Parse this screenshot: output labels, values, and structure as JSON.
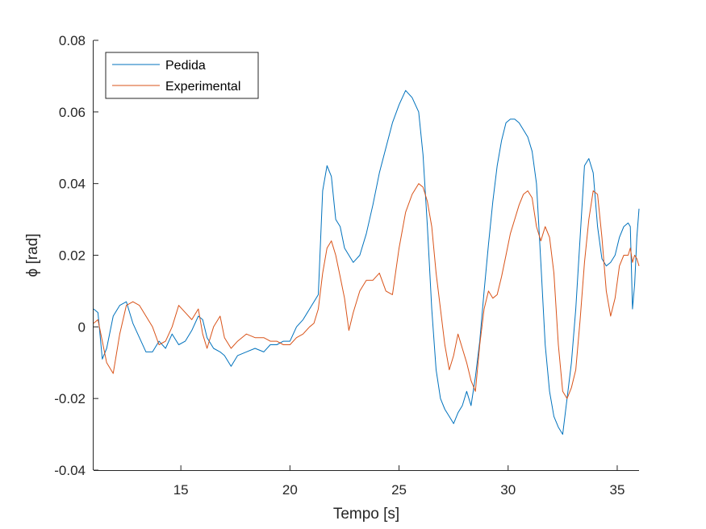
{
  "chart_data": {
    "type": "line",
    "title": "",
    "xlabel": "Tempo [s]",
    "ylabel": "ϕ [rad]",
    "xlim": [
      11,
      36
    ],
    "ylim": [
      -0.04,
      0.08
    ],
    "x_ticks": [
      15,
      20,
      25,
      30,
      35
    ],
    "x_tick_labels": [
      "15",
      "20",
      "25",
      "30",
      "35"
    ],
    "y_ticks": [
      -0.04,
      -0.02,
      0,
      0.02,
      0.04,
      0.06,
      0.08
    ],
    "y_tick_labels": [
      "-0.04",
      "-0.02",
      "0",
      "0.02",
      "0.04",
      "0.06",
      "0.08"
    ],
    "grid": false,
    "legend_position": "top-left",
    "series": [
      {
        "name": "Pedida",
        "color": "#0072BD",
        "x": [
          11,
          11.2,
          11.4,
          11.6,
          11.9,
          12.2,
          12.5,
          12.8,
          13.1,
          13.4,
          13.7,
          14.0,
          14.3,
          14.6,
          14.9,
          15.2,
          15.5,
          15.8,
          16.0,
          16.2,
          16.5,
          16.8,
          17.0,
          17.3,
          17.6,
          18.0,
          18.4,
          18.8,
          19.1,
          19.4,
          19.7,
          20.0,
          20.3,
          20.6,
          20.9,
          21.1,
          21.3,
          21.5,
          21.7,
          21.9,
          22.1,
          22.3,
          22.5,
          22.7,
          22.9,
          23.2,
          23.5,
          23.8,
          24.1,
          24.4,
          24.7,
          25.0,
          25.3,
          25.6,
          25.9,
          26.1,
          26.3,
          26.5,
          26.7,
          26.9,
          27.1,
          27.3,
          27.5,
          27.7,
          27.9,
          28.1,
          28.3,
          28.5,
          28.7,
          28.9,
          29.1,
          29.3,
          29.5,
          29.7,
          29.9,
          30.1,
          30.3,
          30.5,
          30.7,
          30.9,
          31.1,
          31.3,
          31.5,
          31.7,
          31.9,
          32.1,
          32.3,
          32.5,
          32.7,
          32.9,
          33.1,
          33.3,
          33.5,
          33.7,
          33.9,
          34.1,
          34.3,
          34.5,
          34.7,
          34.9,
          35.1,
          35.3,
          35.5,
          35.6,
          35.7,
          35.8,
          35.9,
          36.0
        ],
        "y": [
          0.005,
          0.004,
          -0.009,
          -0.006,
          0.003,
          0.006,
          0.007,
          0.001,
          -0.003,
          -0.007,
          -0.007,
          -0.004,
          -0.006,
          -0.002,
          -0.005,
          -0.004,
          -0.001,
          0.003,
          0.002,
          -0.003,
          -0.006,
          -0.007,
          -0.008,
          -0.011,
          -0.008,
          -0.007,
          -0.006,
          -0.007,
          -0.005,
          -0.005,
          -0.004,
          -0.004,
          0.0,
          0.002,
          0.005,
          0.007,
          0.009,
          0.038,
          0.045,
          0.042,
          0.03,
          0.028,
          0.022,
          0.02,
          0.018,
          0.02,
          0.026,
          0.034,
          0.043,
          0.05,
          0.057,
          0.062,
          0.066,
          0.064,
          0.06,
          0.048,
          0.028,
          0.005,
          -0.012,
          -0.02,
          -0.023,
          -0.025,
          -0.027,
          -0.024,
          -0.022,
          -0.018,
          -0.022,
          -0.014,
          -0.004,
          0.01,
          0.023,
          0.035,
          0.045,
          0.052,
          0.057,
          0.058,
          0.058,
          0.057,
          0.055,
          0.053,
          0.049,
          0.04,
          0.018,
          -0.005,
          -0.018,
          -0.025,
          -0.028,
          -0.03,
          -0.02,
          -0.01,
          0.005,
          0.025,
          0.045,
          0.047,
          0.043,
          0.028,
          0.019,
          0.017,
          0.018,
          0.02,
          0.025,
          0.028,
          0.029,
          0.028,
          0.005,
          0.012,
          0.025,
          0.033
        ]
      },
      {
        "name": "Experimental",
        "color": "#D95319",
        "x": [
          11,
          11.2,
          11.4,
          11.6,
          11.9,
          12.2,
          12.5,
          12.8,
          13.1,
          13.4,
          13.7,
          14.0,
          14.3,
          14.6,
          14.9,
          15.2,
          15.5,
          15.8,
          16.0,
          16.2,
          16.5,
          16.8,
          17.0,
          17.3,
          17.6,
          18.0,
          18.4,
          18.8,
          19.1,
          19.4,
          19.7,
          20.0,
          20.3,
          20.6,
          20.9,
          21.1,
          21.3,
          21.5,
          21.7,
          21.9,
          22.1,
          22.3,
          22.5,
          22.7,
          22.9,
          23.2,
          23.5,
          23.8,
          24.1,
          24.4,
          24.7,
          25.0,
          25.3,
          25.6,
          25.9,
          26.1,
          26.3,
          26.5,
          26.7,
          26.9,
          27.1,
          27.3,
          27.5,
          27.7,
          27.9,
          28.1,
          28.3,
          28.5,
          28.7,
          28.9,
          29.1,
          29.3,
          29.5,
          29.7,
          29.9,
          30.1,
          30.3,
          30.5,
          30.7,
          30.9,
          31.1,
          31.3,
          31.5,
          31.7,
          31.9,
          32.1,
          32.3,
          32.5,
          32.7,
          32.9,
          33.1,
          33.3,
          33.5,
          33.7,
          33.9,
          34.1,
          34.3,
          34.5,
          34.7,
          34.9,
          35.1,
          35.3,
          35.5,
          35.6,
          35.7,
          35.8,
          35.9,
          36.0
        ],
        "y": [
          0.001,
          0.002,
          -0.004,
          -0.01,
          -0.013,
          -0.002,
          0.006,
          0.007,
          0.006,
          0.003,
          0.0,
          -0.005,
          -0.004,
          0.0,
          0.006,
          0.004,
          0.002,
          0.005,
          -0.002,
          -0.006,
          0.0,
          0.003,
          -0.003,
          -0.006,
          -0.004,
          -0.002,
          -0.003,
          -0.003,
          -0.004,
          -0.004,
          -0.005,
          -0.005,
          -0.003,
          -0.002,
          0.0,
          0.001,
          0.005,
          0.015,
          0.022,
          0.024,
          0.02,
          0.014,
          0.008,
          -0.001,
          0.004,
          0.01,
          0.013,
          0.013,
          0.015,
          0.01,
          0.009,
          0.022,
          0.032,
          0.037,
          0.04,
          0.039,
          0.035,
          0.028,
          0.015,
          0.005,
          -0.005,
          -0.012,
          -0.008,
          -0.002,
          -0.006,
          -0.01,
          -0.015,
          -0.018,
          -0.005,
          0.005,
          0.01,
          0.008,
          0.009,
          0.014,
          0.02,
          0.026,
          0.03,
          0.034,
          0.037,
          0.038,
          0.036,
          0.028,
          0.024,
          0.028,
          0.025,
          0.015,
          -0.005,
          -0.018,
          -0.02,
          -0.017,
          -0.012,
          0.002,
          0.018,
          0.03,
          0.038,
          0.037,
          0.025,
          0.01,
          0.003,
          0.008,
          0.017,
          0.02,
          0.02,
          0.022,
          0.018,
          0.02,
          0.019,
          0.017
        ]
      }
    ]
  }
}
